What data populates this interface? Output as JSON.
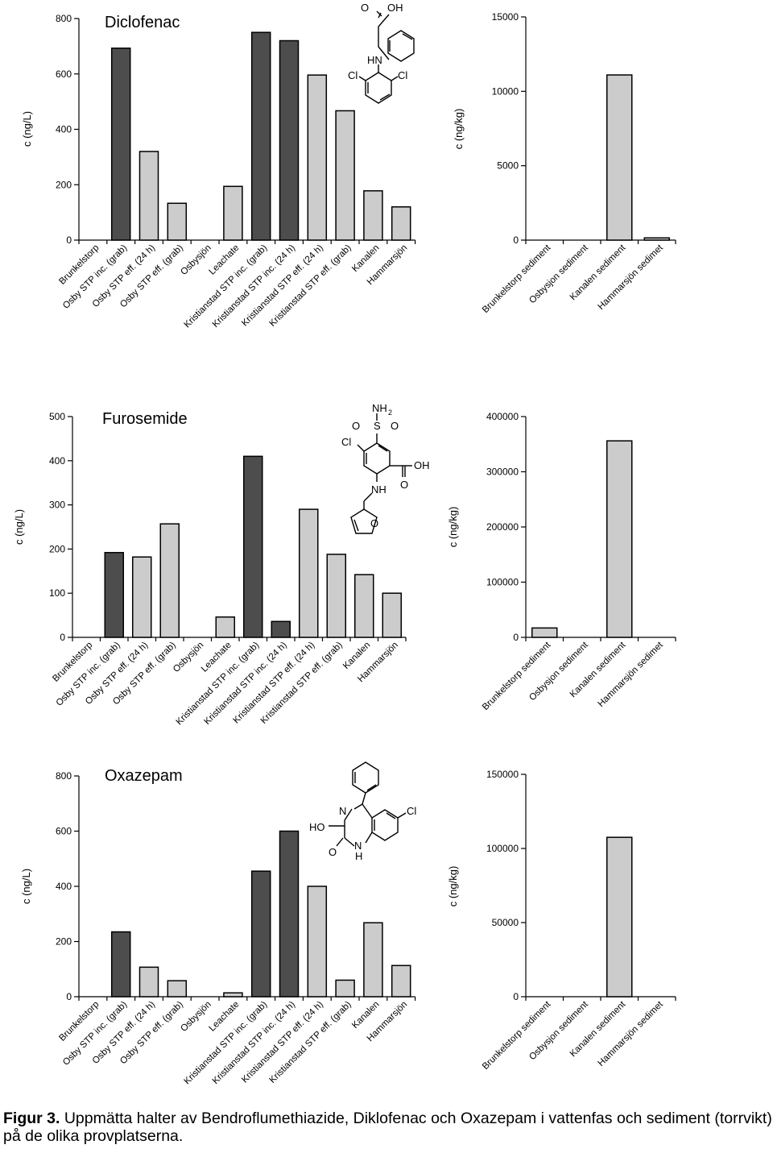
{
  "caption": {
    "label": "Figur 3.",
    "text": " Uppmätta halter av Bendroflumethiazide, Diklofenac och Oxazepam i vattenfas och sediment (torrvikt) på de olika provplatserna."
  },
  "colors": {
    "dark": "#4d4d4d",
    "light": "#cccccc",
    "axis": "#000000"
  },
  "chart_data": [
    {
      "type": "bar",
      "title": "Diclofenac",
      "ylabel": "c (ng/L)",
      "ylim": [
        0,
        800
      ],
      "yticks": [
        0,
        200,
        400,
        600,
        800
      ],
      "categories": [
        "Brunkelstorp",
        "Osby STP inc. (grab)",
        "Osby STP eff. (24 h)",
        "Osby STP eff. (grab)",
        "Osbysjön",
        "Leachate",
        "Kristianstad STP inc. (grab)",
        "Kristianstad STP inc. (24 h)",
        "Kristianstad STP eff. (24 h)",
        "Kristianstad STP eff. (grab)",
        "Kanalen",
        "Hammarsjön"
      ],
      "values": [
        0,
        693,
        320,
        133,
        0,
        194,
        750,
        720,
        596,
        467,
        178,
        120
      ],
      "shades": [
        "light",
        "dark",
        "light",
        "light",
        "light",
        "light",
        "dark",
        "dark",
        "light",
        "light",
        "light",
        "light"
      ]
    },
    {
      "type": "bar",
      "title": "",
      "ylabel": "c (ng/kg)",
      "ylim": [
        0,
        15000
      ],
      "yticks": [
        0,
        5000,
        10000,
        15000
      ],
      "categories": [
        "Brunkelstorp sediment",
        "Osbysjon sediment",
        "Kanalen sediment",
        "Hammarsjön sedimet"
      ],
      "values": [
        0,
        0,
        11100,
        150
      ],
      "shades": [
        "light",
        "light",
        "light",
        "light"
      ]
    },
    {
      "type": "bar",
      "title": "Furosemide",
      "ylabel": "c (ng/L)",
      "ylim": [
        0,
        500
      ],
      "yticks": [
        0,
        100,
        200,
        300,
        400,
        500
      ],
      "categories": [
        "Brunkelstorp",
        "Osby STP inc. (grab)",
        "Osby STP eff. (24 h)",
        "Osby STP eff. (grab)",
        "Osbysjön",
        "Leachate",
        "Kristianstad STP inc. (grab)",
        "Kristianstad STP inc. (24 h)",
        "Kristianstad STP eff. (24 h)",
        "Kristianstad STP eff. (grab)",
        "Kanalen",
        "Hammarsjön"
      ],
      "values": [
        0,
        192,
        182,
        257,
        0,
        46,
        410,
        36,
        290,
        188,
        142,
        100
      ],
      "shades": [
        "light",
        "dark",
        "light",
        "light",
        "light",
        "light",
        "dark",
        "dark",
        "light",
        "light",
        "light",
        "light"
      ]
    },
    {
      "type": "bar",
      "title": "",
      "ylabel": "c (ng/kg)",
      "ylim": [
        0,
        400000
      ],
      "yticks": [
        0,
        100000,
        200000,
        300000,
        400000
      ],
      "categories": [
        "Brunkelstorp sediment",
        "Osbysjon sediment",
        "Kanalen sediment",
        "Hammarsjön sedimet"
      ],
      "values": [
        17000,
        0,
        356000,
        0
      ],
      "shades": [
        "light",
        "light",
        "light",
        "light"
      ]
    },
    {
      "type": "bar",
      "title": "Oxazepam",
      "ylabel": "c (ng/L)",
      "ylim": [
        0,
        800
      ],
      "yticks": [
        0,
        200,
        400,
        600,
        800
      ],
      "categories": [
        "Brunkelstorp",
        "Osby STP inc. (grab)",
        "Osby STP eff. (24 h)",
        "Osby STP eff. (grab)",
        "Osbysjön",
        "Leachate",
        "Kristianstad STP inc. (grab)",
        "Kristianstad STP inc. (24 h)",
        "Kristianstad STP eff. (24 h)",
        "Kristianstad STP eff. (grab)",
        "Kanalen",
        "Hammarsjön"
      ],
      "values": [
        0,
        235,
        107,
        58,
        0,
        14,
        455,
        600,
        400,
        60,
        268,
        113
      ],
      "shades": [
        "light",
        "dark",
        "light",
        "light",
        "light",
        "light",
        "dark",
        "dark",
        "light",
        "light",
        "light",
        "light"
      ]
    },
    {
      "type": "bar",
      "title": "",
      "ylabel": "c (ng/kg)",
      "ylim": [
        0,
        150000
      ],
      "yticks": [
        0,
        50000,
        100000,
        150000
      ],
      "categories": [
        "Brunkelstorp sediment",
        "Osbysjon sediment",
        "Kanalen sediment",
        "Hammarsjön sedimet"
      ],
      "values": [
        0,
        0,
        107500,
        0
      ],
      "shades": [
        "light",
        "light",
        "light",
        "light"
      ]
    }
  ],
  "structures": [
    {
      "labels": [
        "O",
        "OH",
        "HN",
        "Cl",
        "Cl"
      ]
    },
    {
      "labels": [
        "NH",
        "2",
        "O",
        "S",
        "O",
        "Cl",
        "OH",
        "NH",
        "O",
        "O"
      ]
    },
    {
      "labels": [
        "HO",
        "N",
        "Cl",
        "O",
        "N",
        "H"
      ]
    }
  ]
}
